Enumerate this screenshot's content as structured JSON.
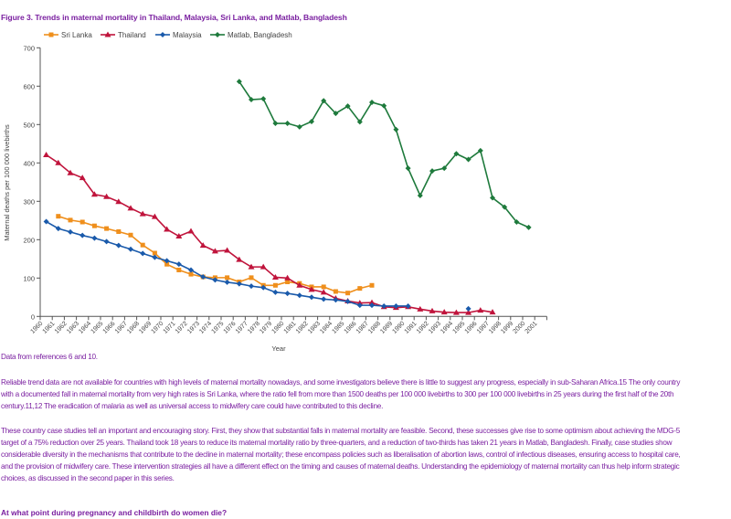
{
  "chart_data": {
    "type": "line",
    "title": "Figure 3. Trends in maternal mortality in Thailand, Malaysia, Sri Lanka, and Matlab, Bangladesh",
    "xlabel": "Year",
    "ylabel": "Maternal deaths per 100 000 livebirths",
    "ylim": [
      0,
      700
    ],
    "yticks": [
      0,
      100,
      200,
      300,
      400,
      500,
      600,
      700
    ],
    "categories": [
      1960,
      1961,
      1962,
      1963,
      1964,
      1965,
      1966,
      1967,
      1968,
      1969,
      1970,
      1971,
      1972,
      1973,
      1974,
      1975,
      1976,
      1977,
      1978,
      1979,
      1980,
      1981,
      1982,
      1983,
      1984,
      1985,
      1986,
      1987,
      1988,
      1989,
      1990,
      1991,
      1992,
      1993,
      1994,
      1995,
      1996,
      1997,
      1998,
      1999,
      2000,
      2001
    ],
    "legend_position": "top",
    "grid": false,
    "series": [
      {
        "name": "Sri Lanka",
        "color": "#ef8f1c",
        "marker": "square",
        "values": [
          null,
          261,
          251,
          246,
          236,
          229,
          221,
          212,
          186,
          165,
          136,
          121,
          110,
          103,
          101,
          101,
          90,
          101,
          81,
          81,
          90,
          86,
          77,
          77,
          65,
          61,
          73,
          81,
          null,
          null,
          null,
          null,
          null,
          null,
          null,
          null,
          null,
          null,
          null,
          null,
          null,
          null
        ]
      },
      {
        "name": "Thailand",
        "color": "#c0143c",
        "marker": "triangle",
        "values": [
          421,
          400,
          374,
          361,
          318,
          312,
          299,
          282,
          267,
          260,
          227,
          209,
          222,
          185,
          170,
          172,
          148,
          129,
          129,
          102,
          100,
          81,
          70,
          63,
          47,
          40,
          35,
          36,
          25,
          23,
          25,
          19,
          14,
          11,
          10,
          10,
          16,
          11,
          null,
          null,
          null,
          null
        ]
      },
      {
        "name": "Malaysia",
        "color": "#1a5aab",
        "marker": "diamond",
        "values": [
          247,
          229,
          220,
          211,
          204,
          195,
          185,
          175,
          164,
          154,
          145,
          136,
          121,
          103,
          95,
          89,
          85,
          79,
          75,
          63,
          60,
          55,
          50,
          45,
          43,
          39,
          29,
          29,
          27,
          27,
          27,
          null,
          null,
          null,
          null,
          20,
          null,
          null,
          null,
          null,
          null,
          null
        ]
      },
      {
        "name": "Matlab, Bangladesh",
        "color": "#1e7a3c",
        "marker": "diamond",
        "values": [
          null,
          null,
          null,
          null,
          null,
          null,
          null,
          null,
          null,
          null,
          null,
          null,
          null,
          null,
          null,
          null,
          612,
          565,
          567,
          503,
          503,
          494,
          508,
          562,
          529,
          548,
          507,
          558,
          549,
          487,
          386,
          315,
          379,
          386,
          424,
          409,
          432,
          309,
          285,
          246,
          232,
          null
        ]
      }
    ]
  },
  "notes": {
    "source": "Data from references 6 and 10.",
    "paragraph1": [
      "Reliable trend data are not available for countries with high levels of maternal mortality nowadays, and some investigators believe there is little to suggest any progress, especially in sub-Saharan Africa.15 The only country",
      "with a documented fall in maternal mortality from very high rates is Sri Lanka, where the ratio fell from more than 1500 deaths per 100 000 livebirths to 300 per 100 000 livebirths in 25 years during the first half of the 20th",
      "century.11,12 The eradication of malaria as well as universal access to midwifery care could have contributed to this decline."
    ],
    "paragraph2": [
      "These country case studies tell an important and encouraging story. First, they show that substantial falls in maternal mortality are feasible. Second, these successes give rise to some optimism about achieving the MDG-5",
      "target of a 75% reduction over 25 years. Thailand took 18 years to reduce its maternal mortality ratio by three-quarters, and a reduction of two-thirds has taken 21 years in Matlab, Bangladesh. Finally, case studies show",
      "considerable diversity in the mechanisms that contribute to the decline in maternal mortality; these encompass policies such as liberalisation of abortion laws, control of infectious diseases, ensuring access to hospital care,",
      "and the provision of midwifery care. These intervention strategies all have a different effect on the timing and causes of maternal deaths. Understanding the epidemiology of maternal mortality can thus help inform strategic",
      "choices, as discussed in the second paper in this series."
    ],
    "heading": "At what point during pregnancy and childbirth do women die?"
  }
}
